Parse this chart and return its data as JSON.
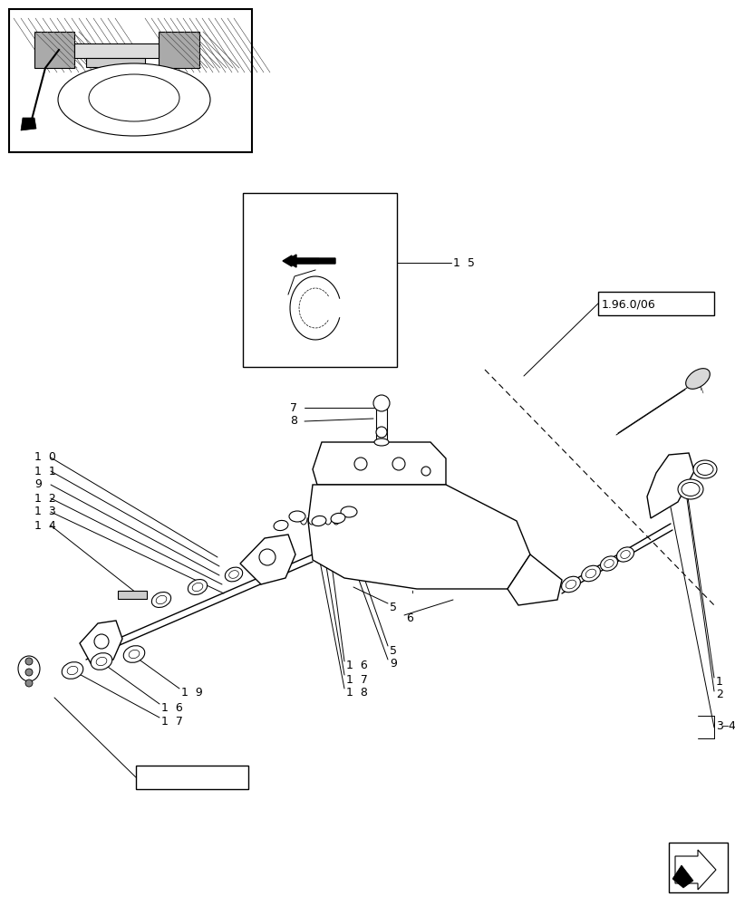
{
  "bg_color": "#ffffff",
  "fig_width": 8.12,
  "fig_height": 10.0,
  "dpi": 100,
  "lw_thin": 0.7,
  "lw_med": 1.0,
  "lw_thick": 1.5
}
